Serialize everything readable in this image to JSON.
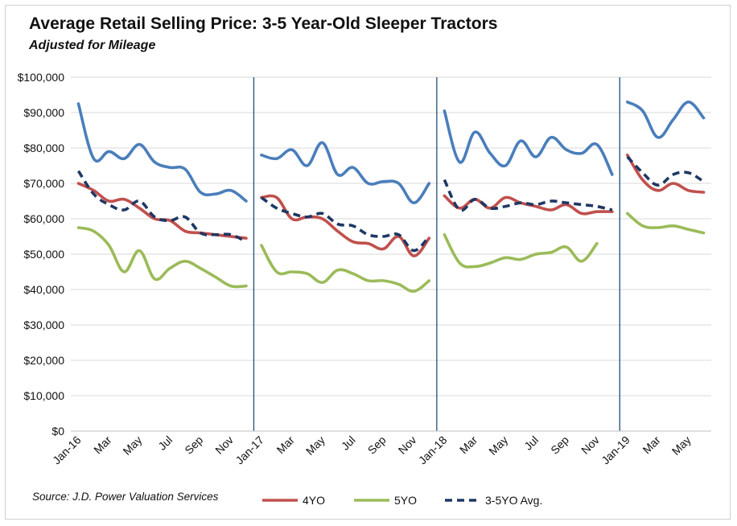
{
  "chart_data": {
    "type": "line",
    "title": "Average Retail Selling Price: 3-5 Year-Old Sleeper Tractors",
    "subtitle": "Adjusted for Mileage",
    "source": "Source: J.D. Power Valuation Services",
    "ylim": [
      0,
      100000
    ],
    "yticks": [
      "$0",
      "$10,000",
      "$20,000",
      "$30,000",
      "$40,000",
      "$50,000",
      "$60,000",
      "$70,000",
      "$80,000",
      "$90,000",
      "$100,000"
    ],
    "xtick_labels": [
      "Jan-16",
      "Mar",
      "May",
      "Jul",
      "Sep",
      "Nov",
      "Jan-17",
      "Mar",
      "May",
      "Jul",
      "Sep",
      "Nov",
      "Jan-18",
      "Mar",
      "May",
      "Jul",
      "Sep",
      "Nov",
      "Jan-19",
      "Mar",
      "May"
    ],
    "grid": true,
    "legend_position": "bottom",
    "year_dividers": [
      "Jan-17",
      "Jan-18",
      "Jan-19"
    ],
    "series": [
      {
        "name": "",
        "color": "#4a7ebb",
        "dashed": false,
        "segments": [
          [
            92500,
            77000,
            79000,
            77000,
            81000,
            76000,
            74500,
            74000,
            67500,
            67000,
            68000,
            65000
          ],
          [
            78000,
            77000,
            79500,
            75000,
            81500,
            72500,
            74500,
            70000,
            70500,
            70000,
            64500,
            70000
          ],
          [
            90500,
            76000,
            84500,
            78500,
            75000,
            82000,
            77500,
            83000,
            79500,
            78500,
            81000,
            72500
          ],
          [
            93000,
            90500,
            83000,
            88000,
            93000,
            88500
          ]
        ]
      },
      {
        "name": "4YO",
        "color": "#c0504d",
        "dashed": false,
        "segments": [
          [
            70000,
            68000,
            65000,
            65500,
            63000,
            60000,
            59500,
            56500,
            56000,
            55500,
            55000,
            54500
          ],
          [
            66000,
            66000,
            60000,
            60500,
            60000,
            56500,
            53500,
            53000,
            51500,
            55000,
            49500,
            54500
          ],
          [
            66500,
            63000,
            65500,
            63000,
            66000,
            64500,
            63500,
            62500,
            64000,
            61500,
            62000,
            62000
          ],
          [
            78000,
            71000,
            68000,
            70000,
            68000,
            67500
          ]
        ]
      },
      {
        "name": "5YO",
        "color": "#9bbb59",
        "dashed": false,
        "segments": [
          [
            57500,
            56500,
            52500,
            45000,
            51000,
            43000,
            46000,
            48000,
            46000,
            43500,
            41000,
            41000
          ],
          [
            52500,
            45000,
            45000,
            44500,
            42000,
            45500,
            44500,
            42500,
            42500,
            41500,
            39500,
            42500
          ],
          [
            55500,
            47500,
            46500,
            47500,
            49000,
            48500,
            50000,
            50500,
            52000,
            48000,
            53000
          ],
          [
            61500,
            58000,
            57500,
            58000,
            57000,
            56000
          ]
        ]
      },
      {
        "name": "3-5YO Avg.",
        "color": "#1f3864",
        "dashed": true,
        "segments": [
          [
            73500,
            67000,
            64000,
            62500,
            65000,
            60500,
            59500,
            60500,
            56000,
            55500,
            55500,
            53500
          ],
          [
            66000,
            63000,
            61500,
            60500,
            61500,
            58500,
            58000,
            55500,
            55000,
            55500,
            51000,
            55000
          ],
          [
            71000,
            62500,
            65500,
            63000,
            63500,
            64500,
            64000,
            65000,
            64500,
            64000,
            63500,
            62500
          ],
          [
            77500,
            73000,
            69500,
            72500,
            73000,
            70500
          ]
        ]
      }
    ]
  }
}
